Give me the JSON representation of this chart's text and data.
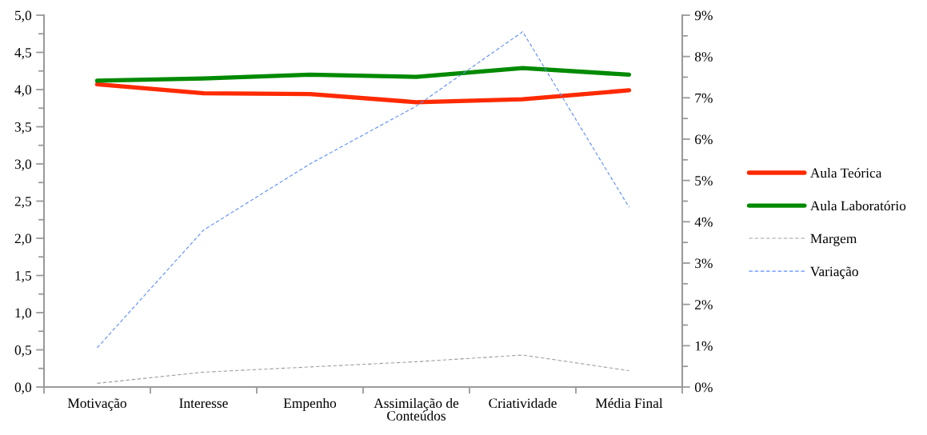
{
  "chart_data": {
    "type": "line",
    "categories": [
      "Motivação",
      "Interesse",
      "Empenho",
      "Assimilação de\nConteúdos",
      "Criatividade",
      "Média Final"
    ],
    "series": [
      {
        "name": "Aula Teórica",
        "color": "#ff2a00",
        "line_style": "solid",
        "values": [
          4.07,
          3.95,
          3.94,
          3.83,
          3.87,
          3.99
        ]
      },
      {
        "name": "Aula Laboratório",
        "color": "#008a00",
        "line_style": "solid",
        "values": [
          4.12,
          4.15,
          4.2,
          4.17,
          4.29,
          4.2
        ]
      },
      {
        "name": "Margem",
        "color": "#a0a0a0",
        "line_style": "dashed",
        "values": [
          0.05,
          0.2,
          0.27,
          0.34,
          0.43,
          0.22
        ]
      },
      {
        "name": "Variação",
        "color": "#5b8cff",
        "line_style": "dashed",
        "axis": "y2",
        "values": [
          0.95,
          3.8,
          5.4,
          6.8,
          8.6,
          4.35
        ]
      }
    ],
    "ylim": [
      0,
      5
    ],
    "yticks": [
      {
        "value": 0,
        "label": "0,0"
      },
      {
        "value": 0.5,
        "label": "0,5"
      },
      {
        "value": 1,
        "label": "1,0"
      },
      {
        "value": 1.5,
        "label": "1,5"
      },
      {
        "value": 2,
        "label": "2,0"
      },
      {
        "value": 2.5,
        "label": "2,5"
      },
      {
        "value": 3,
        "label": "3,0"
      },
      {
        "value": 3.5,
        "label": "3,5"
      },
      {
        "value": 4,
        "label": "4,0"
      },
      {
        "value": 4.5,
        "label": "4,5"
      },
      {
        "value": 5,
        "label": "5,0"
      }
    ],
    "y2lim": [
      0,
      9
    ],
    "y2ticks": [
      {
        "value": 0,
        "label": "0%"
      },
      {
        "value": 1,
        "label": "1%"
      },
      {
        "value": 2,
        "label": "2%"
      },
      {
        "value": 3,
        "label": "3%"
      },
      {
        "value": 4,
        "label": "4%"
      },
      {
        "value": 5,
        "label": "5%"
      },
      {
        "value": 6,
        "label": "6%"
      },
      {
        "value": 7,
        "label": "7%"
      },
      {
        "value": 8,
        "label": "8%"
      },
      {
        "value": 9,
        "label": "9%"
      }
    ],
    "legend": "right",
    "grid": false
  }
}
